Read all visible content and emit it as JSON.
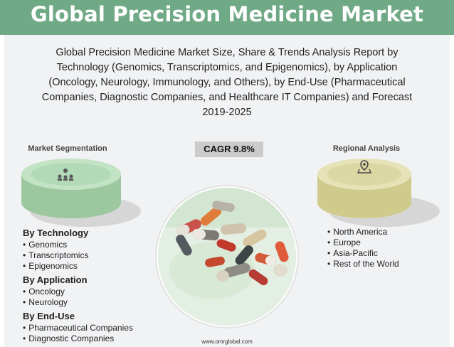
{
  "title": "Global Precision Medicine Market",
  "subtitle": "Global Precision Medicine Market Size, Share & Trends Analysis Report by Technology (Genomics, Transcriptomics, and Epigenomics), by Application (Oncology, Neurology, Immunology, and Others), by End-Use (Pharmaceutical Companies, Diagnostic Companies, and Healthcare IT Companies) and Forecast 2019-2025",
  "segmentation": {
    "label": "Market Segmentation",
    "icon": "people-network-icon",
    "groups": [
      {
        "heading": "By Technology",
        "items": [
          "Genomics",
          "Transcriptomics",
          "Epigenomics"
        ]
      },
      {
        "heading": "By Application",
        "items": [
          "Oncology",
          "Neurology"
        ]
      },
      {
        "heading": "By End-Use",
        "items": [
          "Pharmaceutical Companies",
          "Diagnostic Companies"
        ]
      }
    ]
  },
  "cagr": "CAGR 9.8%",
  "regional": {
    "label": "Regional Analysis",
    "icon": "map-pin-icon",
    "items": [
      "North America",
      "Europe",
      "Asia-Pacific",
      "Rest of the World"
    ]
  },
  "footer": "www.omrglobal.com",
  "colors": {
    "header": "#6fa985",
    "segment_disc": "#b7dcba",
    "region_disc": "#dcd9a6",
    "cagr_badge": "#cbcbcb"
  }
}
